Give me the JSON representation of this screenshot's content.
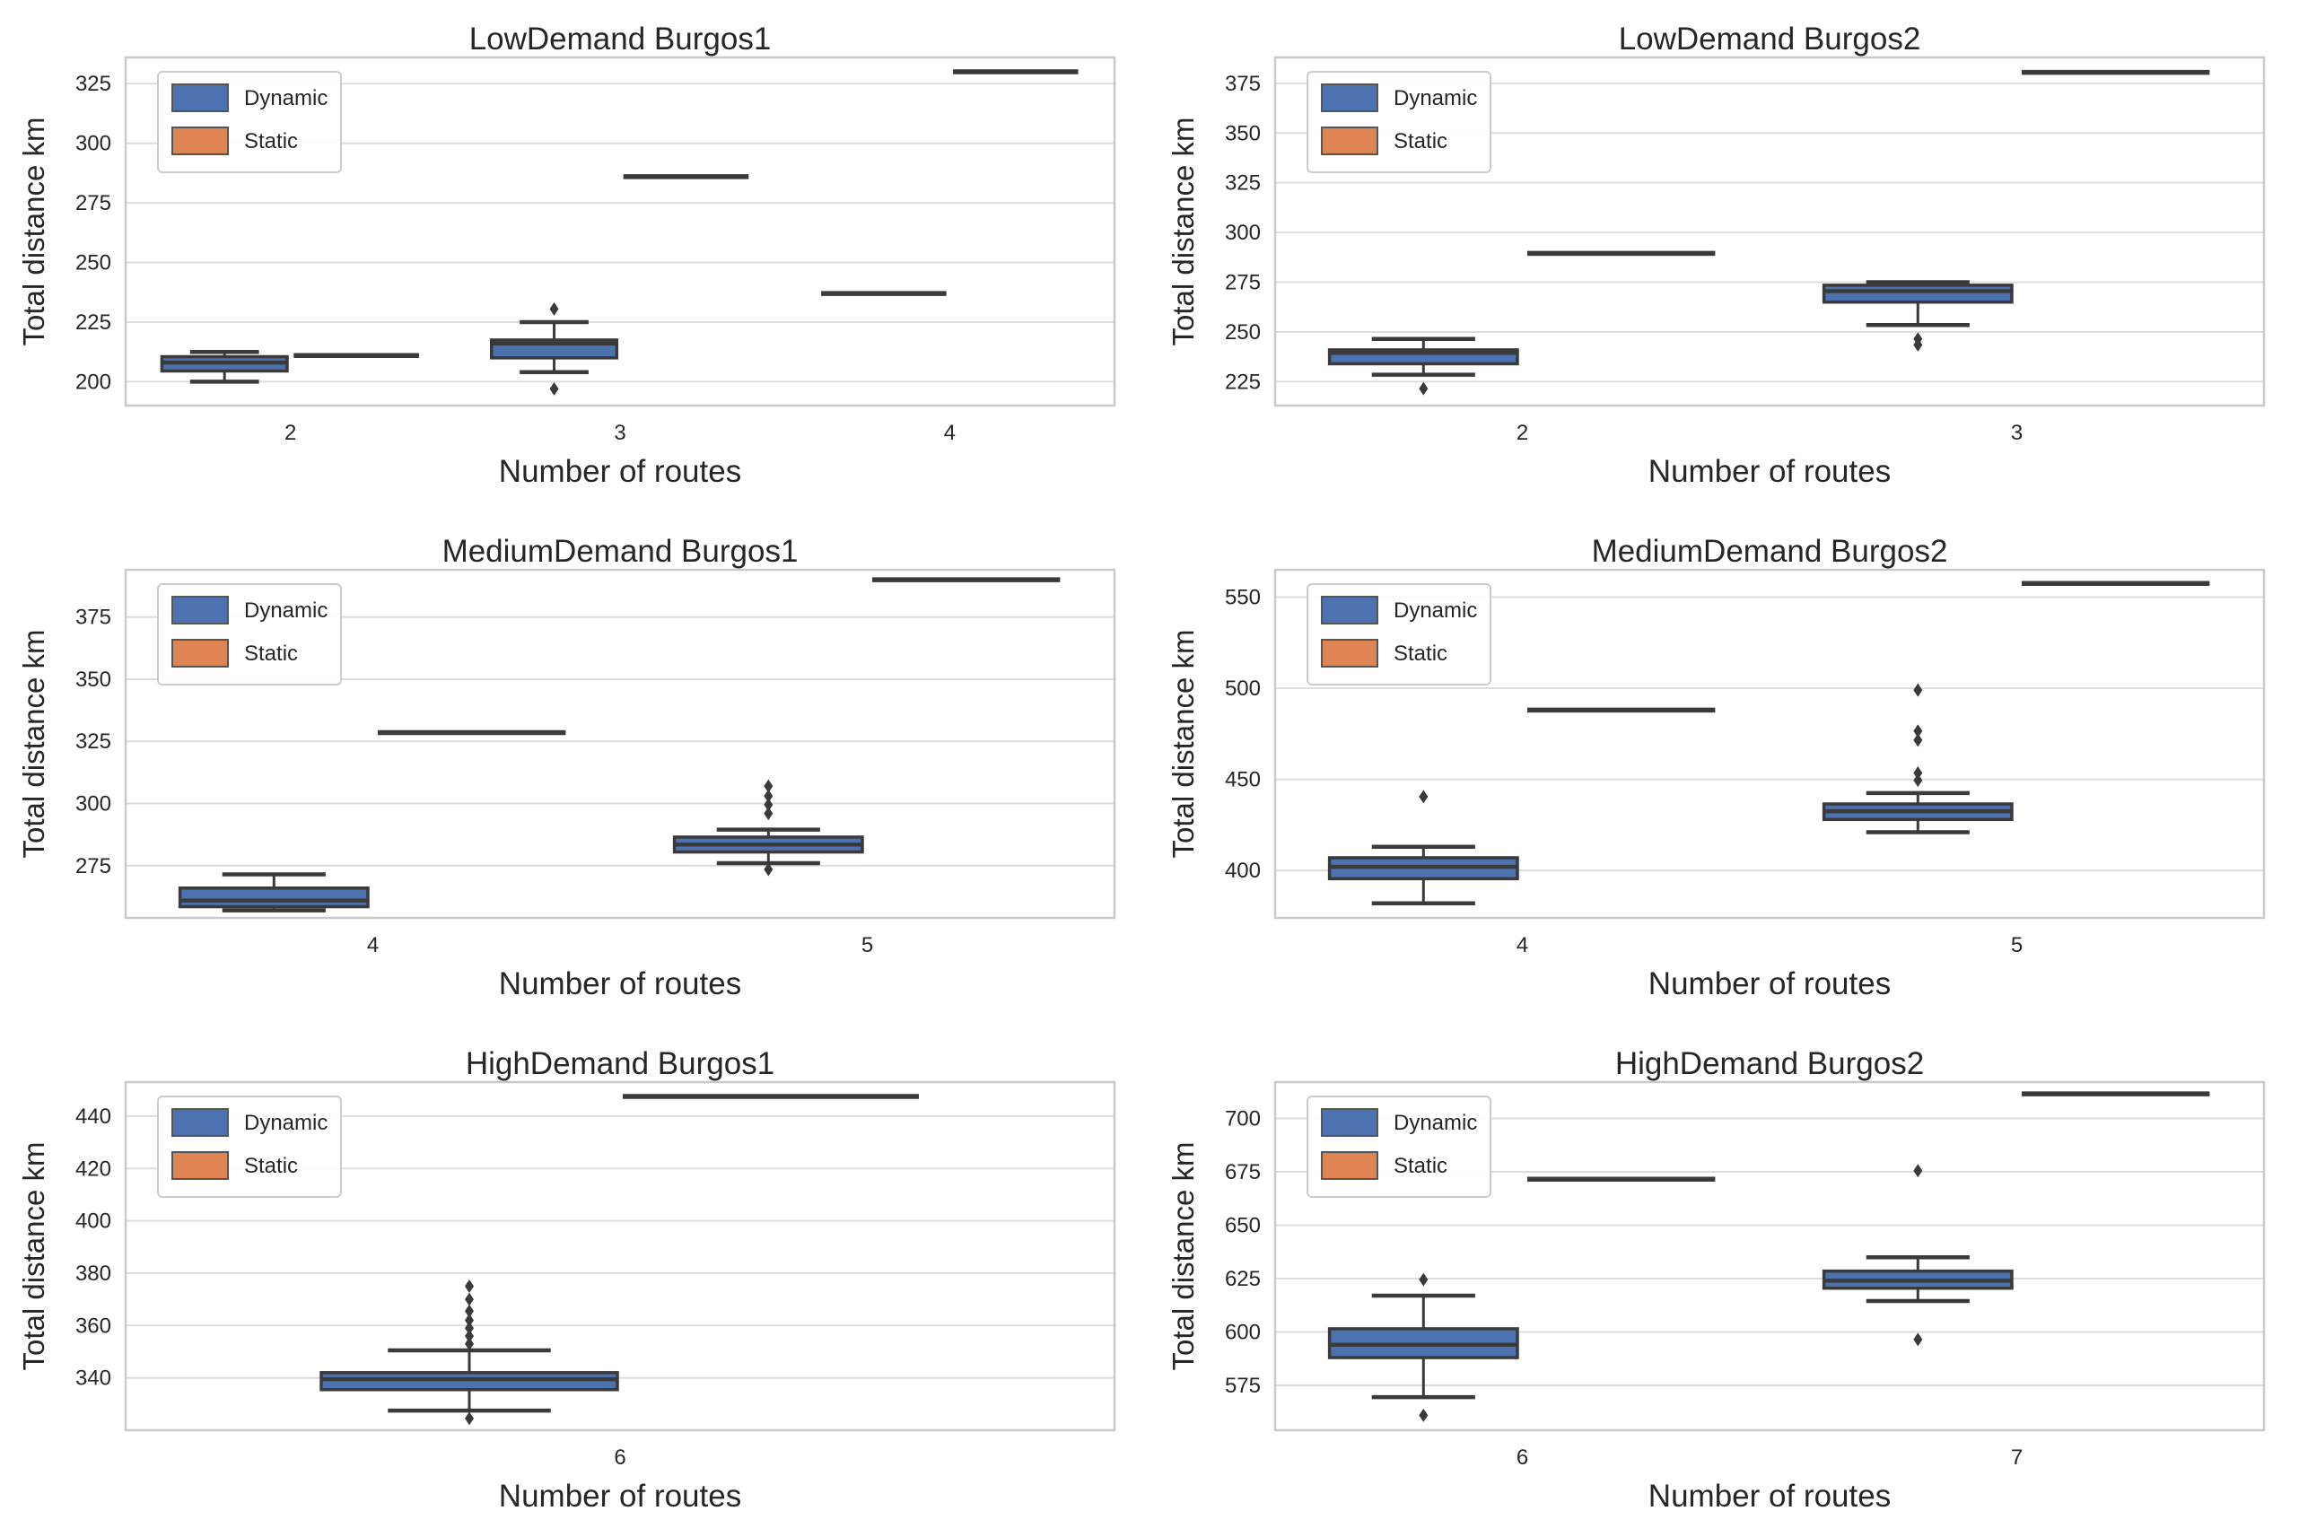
{
  "figure": {
    "background": "#ffffff"
  },
  "style": {
    "box_edge": "#3a3a3a",
    "grid": "#dcdcdc",
    "spine": "#c9c9c9",
    "text": "#262626",
    "legend_bg": "#ffffff",
    "legend_border": "#cccccc"
  },
  "legend": {
    "items": [
      {
        "label": "Dynamic",
        "color": "#4C72B0"
      },
      {
        "label": "Static",
        "color": "#DD8452"
      }
    ]
  },
  "chart_data": [
    {
      "type": "box",
      "title": "LowDemand Burgos1",
      "xlabel": "Number of routes",
      "ylabel": "Total distance km",
      "categories": [
        "2",
        "3",
        "4"
      ],
      "ylim": [
        190,
        336
      ],
      "yticks": [
        200,
        225,
        250,
        275,
        300,
        325
      ],
      "grid": true,
      "legend_position": "upper-left",
      "series": [
        {
          "name": "Dynamic",
          "boxes": [
            {
              "category": "2",
              "median": 208,
              "q1": 204.5,
              "q3": 210.5,
              "whisker_low": 200,
              "whisker_high": 212.5,
              "outliers": []
            },
            {
              "category": "3",
              "median": 216,
              "q1": 210,
              "q3": 217.5,
              "whisker_low": 204,
              "whisker_high": 225,
              "outliers": [
                230.5,
                197
              ]
            },
            {
              "category": "4",
              "flat": 237
            }
          ]
        },
        {
          "name": "Static",
          "boxes": [
            {
              "category": "2",
              "flat": 211
            },
            {
              "category": "3",
              "flat": 286
            },
            {
              "category": "4",
              "flat": 330
            }
          ]
        }
      ]
    },
    {
      "type": "box",
      "title": "LowDemand Burgos2",
      "xlabel": "Number of routes",
      "ylabel": "Total distance km",
      "categories": [
        "2",
        "3"
      ],
      "ylim": [
        213,
        388
      ],
      "yticks": [
        225,
        250,
        275,
        300,
        325,
        350,
        375
      ],
      "grid": true,
      "legend_position": "upper-left",
      "series": [
        {
          "name": "Dynamic",
          "boxes": [
            {
              "category": "2",
              "median": 239.5,
              "q1": 234,
              "q3": 241,
              "whisker_low": 228.5,
              "whisker_high": 246.5,
              "outliers": [
                221.5
              ]
            },
            {
              "category": "3",
              "median": 270.5,
              "q1": 265,
              "q3": 273.5,
              "whisker_low": 253.5,
              "whisker_high": 275,
              "outliers": [
                246.5,
                243.5
              ]
            }
          ]
        },
        {
          "name": "Static",
          "boxes": [
            {
              "category": "2",
              "flat": 289.5
            },
            {
              "category": "3",
              "flat": 380.5
            }
          ]
        }
      ]
    },
    {
      "type": "box",
      "title": "MediumDemand Burgos1",
      "xlabel": "Number of routes",
      "ylabel": "Total distance km",
      "categories": [
        "4",
        "5"
      ],
      "ylim": [
        254,
        394
      ],
      "yticks": [
        275,
        300,
        325,
        350,
        375
      ],
      "grid": true,
      "legend_position": "upper-left",
      "series": [
        {
          "name": "Dynamic",
          "boxes": [
            {
              "category": "4",
              "median": 261,
              "q1": 258.5,
              "q3": 266,
              "whisker_low": 257,
              "whisker_high": 271.5,
              "outliers": []
            },
            {
              "category": "5",
              "median": 283.5,
              "q1": 280.5,
              "q3": 286.5,
              "whisker_low": 276,
              "whisker_high": 289.5,
              "outliers": [
                307,
                303,
                299.5,
                296,
                273.5
              ]
            }
          ]
        },
        {
          "name": "Static",
          "boxes": [
            {
              "category": "4",
              "flat": 328.5
            },
            {
              "category": "5",
              "flat": 390
            }
          ]
        }
      ]
    },
    {
      "type": "box",
      "title": "MediumDemand Burgos2",
      "xlabel": "Number of routes",
      "ylabel": "Total distance km",
      "categories": [
        "4",
        "5"
      ],
      "ylim": [
        374,
        565
      ],
      "yticks": [
        400,
        450,
        500,
        550
      ],
      "grid": true,
      "legend_position": "upper-left",
      "series": [
        {
          "name": "Dynamic",
          "boxes": [
            {
              "category": "4",
              "median": 402,
              "q1": 395.5,
              "q3": 407,
              "whisker_low": 382,
              "whisker_high": 413,
              "outliers": [
                440.5
              ]
            },
            {
              "category": "5",
              "median": 432.5,
              "q1": 428,
              "q3": 436.5,
              "whisker_low": 421,
              "whisker_high": 442.5,
              "outliers": [
                499,
                476.5,
                471.5,
                453.5,
                449.5
              ]
            }
          ]
        },
        {
          "name": "Static",
          "boxes": [
            {
              "category": "4",
              "flat": 488
            },
            {
              "category": "5",
              "flat": 557.5
            }
          ]
        }
      ]
    },
    {
      "type": "box",
      "title": "HighDemand Burgos1",
      "xlabel": "Number of routes",
      "ylabel": "Total distance km",
      "categories": [
        "6"
      ],
      "ylim": [
        320,
        453
      ],
      "yticks": [
        340,
        360,
        380,
        400,
        420,
        440
      ],
      "grid": true,
      "legend_position": "upper-left",
      "series": [
        {
          "name": "Dynamic",
          "boxes": [
            {
              "category": "6",
              "median": 339.5,
              "q1": 335.5,
              "q3": 342,
              "whisker_low": 327.5,
              "whisker_high": 350.5,
              "outliers": [
                375,
                370,
                365.5,
                362,
                359,
                356,
                353,
                324.5
              ]
            }
          ]
        },
        {
          "name": "Static",
          "boxes": [
            {
              "category": "6",
              "flat": 447.5
            }
          ]
        }
      ]
    },
    {
      "type": "box",
      "title": "HighDemand Burgos2",
      "xlabel": "Number of routes",
      "ylabel": "Total distance km",
      "categories": [
        "6",
        "7"
      ],
      "ylim": [
        554,
        717
      ],
      "yticks": [
        575,
        600,
        625,
        650,
        675,
        700
      ],
      "grid": true,
      "legend_position": "upper-left",
      "series": [
        {
          "name": "Dynamic",
          "boxes": [
            {
              "category": "6",
              "median": 594,
              "q1": 588,
              "q3": 601.5,
              "whisker_low": 569.5,
              "whisker_high": 617,
              "outliers": [
                624.5,
                561
              ]
            },
            {
              "category": "7",
              "median": 624,
              "q1": 620.5,
              "q3": 628.5,
              "whisker_low": 614.5,
              "whisker_high": 635,
              "outliers": [
                675.5,
                596.5
              ]
            }
          ]
        },
        {
          "name": "Static",
          "boxes": [
            {
              "category": "6",
              "flat": 671.5
            },
            {
              "category": "7",
              "flat": 711.5
            }
          ]
        }
      ]
    }
  ]
}
